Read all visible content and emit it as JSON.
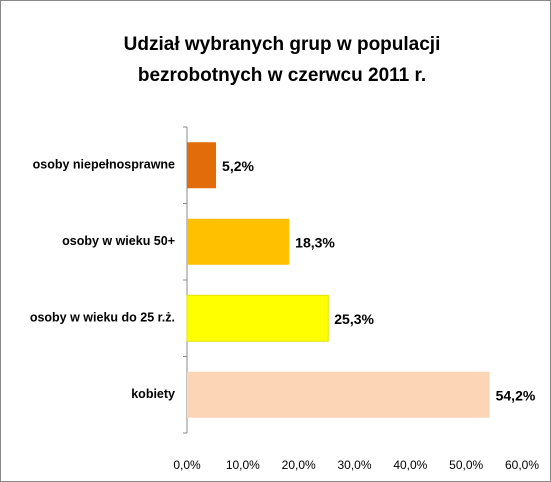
{
  "chart_data": {
    "type": "barh",
    "title": [
      "Udział wybranych grup  w populacji",
      "bezrobotnych w czerwcu 2011 r."
    ],
    "categories": [
      "osoby niepełnosprawne",
      "osoby w wieku 50+",
      "osoby w wieku do 25 r.ż.",
      "kobiety"
    ],
    "values": [
      5.2,
      18.3,
      25.3,
      54.2
    ],
    "value_labels": [
      "5,2%",
      "18,3%",
      "25,3%",
      "54,2%"
    ],
    "colors": [
      "#e36c0a",
      "#ffc000",
      "#ffff00",
      "#fbd5b5"
    ],
    "xlim": [
      0,
      60
    ],
    "xticks": [
      {
        "value": 0,
        "label": "0,0%"
      },
      {
        "value": 10,
        "label": "10,0%"
      },
      {
        "value": 20,
        "label": "20,0%"
      },
      {
        "value": 30,
        "label": "30,0%"
      },
      {
        "value": 40,
        "label": "40,0%"
      },
      {
        "value": 50,
        "label": "50,0%"
      },
      {
        "value": 60,
        "label": "60,0%"
      }
    ],
    "grid": false
  }
}
